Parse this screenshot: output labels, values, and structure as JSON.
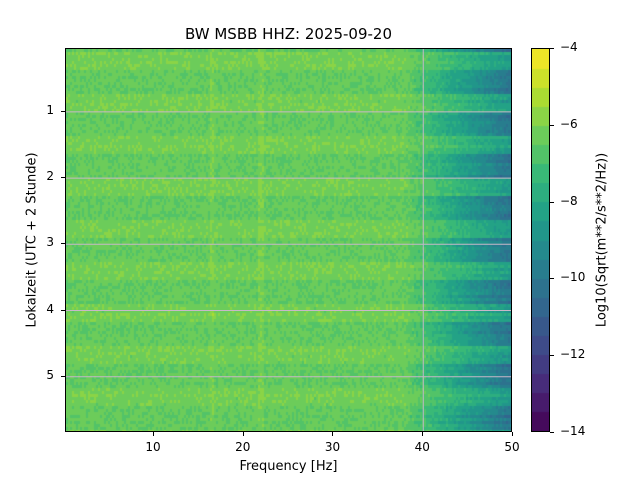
{
  "chart_data": {
    "type": "heatmap",
    "title": "BW MSBB  HHZ: 2025-09-20",
    "xlabel": "Frequency [Hz]",
    "ylabel": "Lokalzeit (UTC + 2 Stunde)",
    "colorbar_label": "Log10(Sqrt(m**2/s**2/Hz))",
    "xlim": [
      0.2,
      50
    ],
    "ylim": [
      5.85,
      0.05
    ],
    "y_inverted": true,
    "x_ticks": [
      "10",
      "20",
      "30",
      "40",
      "50"
    ],
    "x_tick_values": [
      10,
      20,
      30,
      40,
      50
    ],
    "y_ticks": [
      "1",
      "2",
      "3",
      "4",
      "5"
    ],
    "y_tick_values": [
      1,
      2,
      3,
      4,
      5
    ],
    "colorbar_ticks": [
      "−4",
      "−6",
      "−8",
      "−10",
      "−12",
      "−14"
    ],
    "colorbar_tick_values": [
      -4,
      -6,
      -8,
      -10,
      -12,
      -14
    ],
    "color_range": [
      -14,
      -4
    ],
    "color_levels": 20,
    "colormap": "viridis",
    "grid": true,
    "grid_lines_x": [
      40
    ],
    "grid_lines_y": [
      1,
      2,
      3,
      4,
      5
    ],
    "typical_values": {
      "low_freq_level": -6.3,
      "high_freq_level_50hz": -9.5,
      "rolloff_start_hz": 38
    }
  }
}
